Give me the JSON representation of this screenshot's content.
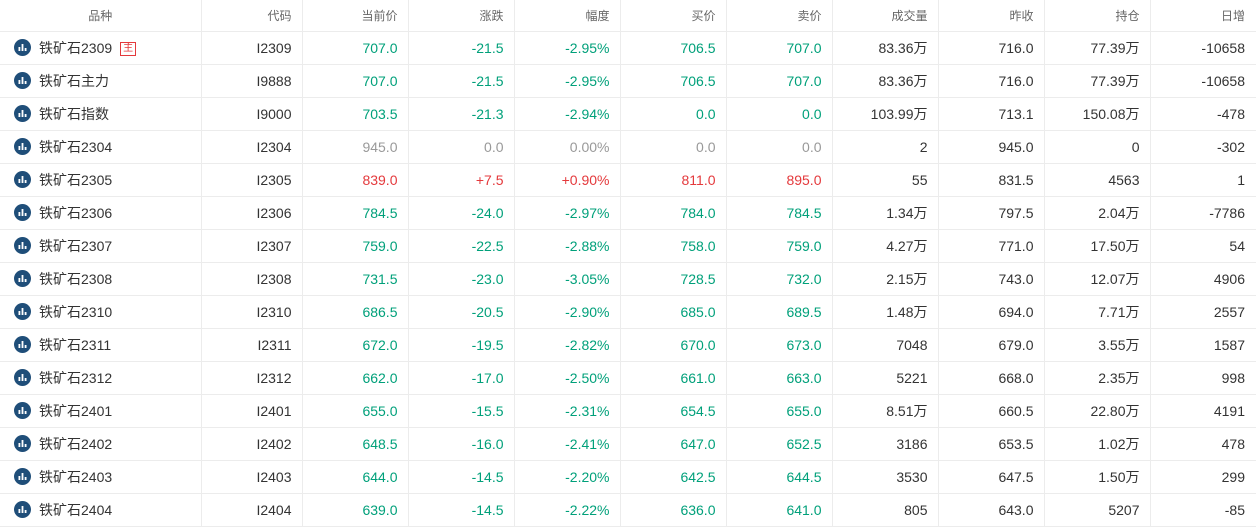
{
  "headers": [
    "品种",
    "代码",
    "当前价",
    "涨跌",
    "幅度",
    "买价",
    "卖价",
    "成交量",
    "昨收",
    "持仓",
    "日增"
  ],
  "chart_icon": "bar-chart-icon",
  "colors": {
    "up": "#e4393c",
    "down": "#00a07a",
    "flat": "#999999",
    "text": "#333333",
    "icon": "#1f4e79"
  },
  "rows": [
    {
      "name": "铁矿石2309",
      "badge": "主",
      "code": "I2309",
      "price": "707.0",
      "change": "-21.5",
      "pct": "-2.95%",
      "bid": "706.5",
      "ask": "707.0",
      "volume": "83.36万",
      "prev_close": "716.0",
      "open_interest": "77.39万",
      "daily_change": "-10658",
      "trend": "down"
    },
    {
      "name": "铁矿石主力",
      "code": "I9888",
      "price": "707.0",
      "change": "-21.5",
      "pct": "-2.95%",
      "bid": "706.5",
      "ask": "707.0",
      "volume": "83.36万",
      "prev_close": "716.0",
      "open_interest": "77.39万",
      "daily_change": "-10658",
      "trend": "down"
    },
    {
      "name": "铁矿石指数",
      "code": "I9000",
      "price": "703.5",
      "change": "-21.3",
      "pct": "-2.94%",
      "bid": "0.0",
      "ask": "0.0",
      "volume": "103.99万",
      "prev_close": "713.1",
      "open_interest": "150.08万",
      "daily_change": "-478",
      "trend": "down"
    },
    {
      "name": "铁矿石2304",
      "code": "I2304",
      "price": "945.0",
      "change": "0.0",
      "pct": "0.00%",
      "bid": "0.0",
      "ask": "0.0",
      "volume": "2",
      "prev_close": "945.0",
      "open_interest": "0",
      "daily_change": "-302",
      "trend": "flat"
    },
    {
      "name": "铁矿石2305",
      "code": "I2305",
      "price": "839.0",
      "change": "+7.5",
      "pct": "+0.90%",
      "bid": "811.0",
      "ask": "895.0",
      "volume": "55",
      "prev_close": "831.5",
      "open_interest": "4563",
      "daily_change": "1",
      "trend": "up"
    },
    {
      "name": "铁矿石2306",
      "code": "I2306",
      "price": "784.5",
      "change": "-24.0",
      "pct": "-2.97%",
      "bid": "784.0",
      "ask": "784.5",
      "volume": "1.34万",
      "prev_close": "797.5",
      "open_interest": "2.04万",
      "daily_change": "-7786",
      "trend": "down"
    },
    {
      "name": "铁矿石2307",
      "code": "I2307",
      "price": "759.0",
      "change": "-22.5",
      "pct": "-2.88%",
      "bid": "758.0",
      "ask": "759.0",
      "volume": "4.27万",
      "prev_close": "771.0",
      "open_interest": "17.50万",
      "daily_change": "54",
      "trend": "down"
    },
    {
      "name": "铁矿石2308",
      "code": "I2308",
      "price": "731.5",
      "change": "-23.0",
      "pct": "-3.05%",
      "bid": "728.5",
      "ask": "732.0",
      "volume": "2.15万",
      "prev_close": "743.0",
      "open_interest": "12.07万",
      "daily_change": "4906",
      "trend": "down"
    },
    {
      "name": "铁矿石2310",
      "code": "I2310",
      "price": "686.5",
      "change": "-20.5",
      "pct": "-2.90%",
      "bid": "685.0",
      "ask": "689.5",
      "volume": "1.48万",
      "prev_close": "694.0",
      "open_interest": "7.71万",
      "daily_change": "2557",
      "trend": "down"
    },
    {
      "name": "铁矿石2311",
      "code": "I2311",
      "price": "672.0",
      "change": "-19.5",
      "pct": "-2.82%",
      "bid": "670.0",
      "ask": "673.0",
      "volume": "7048",
      "prev_close": "679.0",
      "open_interest": "3.55万",
      "daily_change": "1587",
      "trend": "down"
    },
    {
      "name": "铁矿石2312",
      "code": "I2312",
      "price": "662.0",
      "change": "-17.0",
      "pct": "-2.50%",
      "bid": "661.0",
      "ask": "663.0",
      "volume": "5221",
      "prev_close": "668.0",
      "open_interest": "2.35万",
      "daily_change": "998",
      "trend": "down"
    },
    {
      "name": "铁矿石2401",
      "code": "I2401",
      "price": "655.0",
      "change": "-15.5",
      "pct": "-2.31%",
      "bid": "654.5",
      "ask": "655.0",
      "volume": "8.51万",
      "prev_close": "660.5",
      "open_interest": "22.80万",
      "daily_change": "4191",
      "trend": "down"
    },
    {
      "name": "铁矿石2402",
      "code": "I2402",
      "price": "648.5",
      "change": "-16.0",
      "pct": "-2.41%",
      "bid": "647.0",
      "ask": "652.5",
      "volume": "3186",
      "prev_close": "653.5",
      "open_interest": "1.02万",
      "daily_change": "478",
      "trend": "down"
    },
    {
      "name": "铁矿石2403",
      "code": "I2403",
      "price": "644.0",
      "change": "-14.5",
      "pct": "-2.20%",
      "bid": "642.5",
      "ask": "644.5",
      "volume": "3530",
      "prev_close": "647.5",
      "open_interest": "1.50万",
      "daily_change": "299",
      "trend": "down"
    },
    {
      "name": "铁矿石2404",
      "code": "I2404",
      "price": "639.0",
      "change": "-14.5",
      "pct": "-2.22%",
      "bid": "636.0",
      "ask": "641.0",
      "volume": "805",
      "prev_close": "643.0",
      "open_interest": "5207",
      "daily_change": "-85",
      "trend": "down"
    }
  ]
}
